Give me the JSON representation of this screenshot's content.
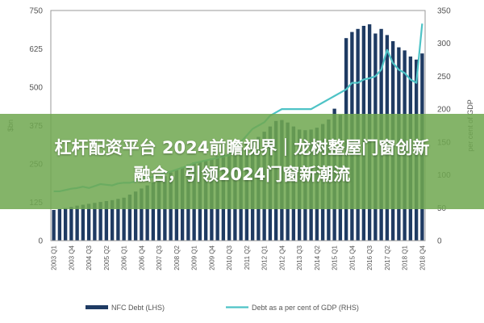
{
  "banner": {
    "line1": "杠杆配资平台 2024前瞻视界｜龙树整屋门窗创新",
    "line2": "融合，引领2024门窗新潮流"
  },
  "colors": {
    "bar": "#1f3b63",
    "line": "#4ec3c6",
    "banner": "#70a850"
  },
  "chart_data": {
    "type": "bar",
    "x_tick_labels": [
      "2003 Q1",
      "2003 Q4",
      "2004 Q3",
      "2005 Q2",
      "2006 Q1",
      "2006 Q4",
      "2007 Q3",
      "2008 Q2",
      "2009 Q1",
      "2009 Q4",
      "2010 Q3",
      "2011 Q2",
      "2012 Q1",
      "2012 Q4",
      "2013 Q3",
      "2014 Q2",
      "2015 Q1",
      "2015 Q4",
      "2016 Q3",
      "2017 Q2",
      "2018 Q1",
      "2018 Q4"
    ],
    "y_left_label": "$bn",
    "y_right_label": "per cent of GDP",
    "y_left_ticks": [
      "0",
      "125",
      "250",
      "375",
      "500",
      "625",
      "750"
    ],
    "y_right_ticks": [
      "0",
      "50",
      "100",
      "150",
      "200",
      "250",
      "300",
      "350"
    ],
    "ylim_left": [
      0,
      750
    ],
    "ylim_right": [
      0,
      350
    ],
    "grid": false,
    "legend_position": "bottom",
    "series": [
      {
        "name": "NFC Debt (LHS)",
        "type": "bar",
        "axis": "left",
        "x": [
          "2003 Q1",
          "2003 Q2",
          "2003 Q3",
          "2003 Q4",
          "2004 Q1",
          "2004 Q2",
          "2004 Q3",
          "2004 Q4",
          "2005 Q1",
          "2005 Q2",
          "2005 Q3",
          "2005 Q4",
          "2006 Q1",
          "2006 Q2",
          "2006 Q3",
          "2006 Q4",
          "2007 Q1",
          "2007 Q2",
          "2007 Q3",
          "2007 Q4",
          "2008 Q1",
          "2008 Q2",
          "2008 Q3",
          "2008 Q4",
          "2009 Q1",
          "2009 Q2",
          "2009 Q3",
          "2009 Q4",
          "2010 Q1",
          "2010 Q2",
          "2010 Q3",
          "2010 Q4",
          "2011 Q1",
          "2011 Q2",
          "2011 Q3",
          "2011 Q4",
          "2012 Q1",
          "2012 Q2",
          "2012 Q3",
          "2012 Q4",
          "2013 Q1",
          "2013 Q2",
          "2013 Q3",
          "2013 Q4",
          "2014 Q1",
          "2014 Q2",
          "2014 Q3",
          "2014 Q4",
          "2015 Q1",
          "2015 Q2",
          "2015 Q3",
          "2015 Q4",
          "2016 Q1",
          "2016 Q2",
          "2016 Q3",
          "2016 Q4",
          "2017 Q1",
          "2017 Q2",
          "2017 Q3",
          "2017 Q4",
          "2018 Q1",
          "2018 Q2",
          "2018 Q3",
          "2018 Q4"
        ],
        "values": [
          100,
          103,
          106,
          110,
          114,
          117,
          120,
          123,
          126,
          129,
          132,
          136,
          140,
          150,
          160,
          170,
          180,
          190,
          200,
          210,
          222,
          232,
          240,
          248,
          255,
          258,
          262,
          268,
          275,
          285,
          295,
          300,
          310,
          320,
          330,
          338,
          355,
          372,
          390,
          393,
          385,
          372,
          362,
          360,
          362,
          368,
          380,
          395,
          430,
          410,
          660,
          680,
          690,
          700,
          705,
          675,
          690,
          670,
          650,
          630,
          620,
          600,
          590,
          610
        ]
      },
      {
        "name": "Debt as a per cent of GDP (RHS)",
        "type": "line",
        "axis": "right",
        "values": [
          75,
          75,
          77,
          79,
          80,
          82,
          80,
          83,
          86,
          85,
          84,
          87,
          88,
          88,
          90,
          93,
          95,
          97,
          100,
          103,
          105,
          108,
          111,
          114,
          118,
          120,
          122,
          124,
          126,
          128,
          130,
          145,
          150,
          160,
          170,
          175,
          180,
          190,
          195,
          200,
          200,
          200,
          200,
          200,
          200,
          205,
          210,
          215,
          220,
          225,
          230,
          240,
          240,
          245,
          247,
          250,
          260,
          290,
          270,
          260,
          255,
          245,
          240,
          330
        ]
      }
    ]
  }
}
